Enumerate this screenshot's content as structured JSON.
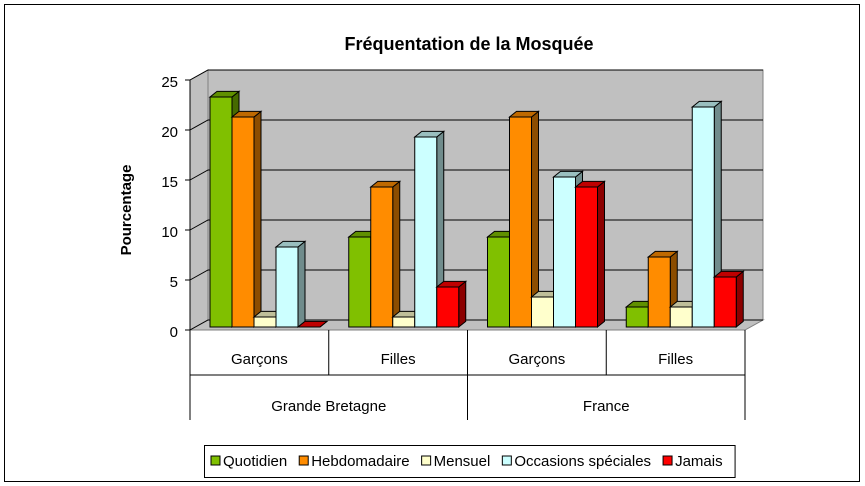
{
  "chart_data": {
    "type": "bar3d",
    "title": "Fréquentation de la Mosquée",
    "y_label": "Pourcentage",
    "categories": [
      "Garçons",
      "Filles",
      "Garçons",
      "Filles"
    ],
    "category_groups": [
      "Grande Bretagne",
      "France"
    ],
    "series": [
      {
        "name": "Quotidien",
        "color": "#80c000",
        "values": [
          23,
          9,
          9,
          2
        ]
      },
      {
        "name": "Hebdomadaire",
        "color": "#ff8c00",
        "values": [
          21,
          14,
          21,
          7
        ]
      },
      {
        "name": "Mensuel",
        "color": "#ffffcc",
        "values": [
          1,
          1,
          3,
          2
        ]
      },
      {
        "name": "Occasions spéciales",
        "color": "#ccffff",
        "values": [
          8,
          19,
          15,
          22
        ]
      },
      {
        "name": "Jamais",
        "color": "#ff0000",
        "values": [
          0,
          4,
          14,
          5
        ]
      }
    ],
    "ylim": [
      0,
      25
    ],
    "yticks": [
      0,
      5,
      10,
      15,
      20,
      25
    ],
    "grid": true,
    "legend": "bottom"
  }
}
